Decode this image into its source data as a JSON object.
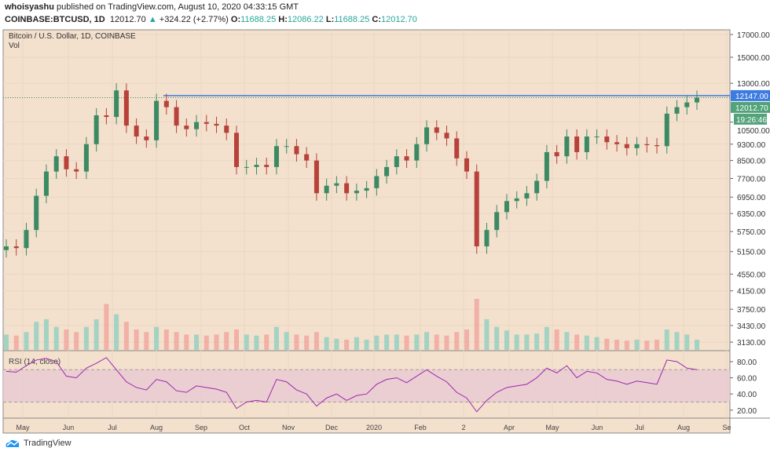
{
  "header": {
    "author": "whoisyashu",
    "published": "published on TradingView.com, August 10, 2020 04:33:15 GMT",
    "symbol": "COINBASE:BTCUSD, 1D",
    "last": "12012.70",
    "change": "+324.22 (+2.77%)",
    "o_label": "O:",
    "o": "11688.25",
    "h_label": "H:",
    "h": "12086.22",
    "l_label": "L:",
    "l": "11688.25",
    "c_label": "C:",
    "c": "12012.70"
  },
  "footer": {
    "brand": "TradingView"
  },
  "colors": {
    "up": "#3b8a63",
    "down": "#b8413a",
    "bg": "#f3e0cd",
    "rsi": "#9c27b0",
    "line": "#3d7be0"
  },
  "chart_data": {
    "type": "candlestick",
    "title": "Bitcoin / U.S. Dollar, 1D, COINBASE",
    "volume_label": "Vol",
    "rsi_label": "RSI (14, close)",
    "price_ticks": [
      "17000.00",
      "15000.00",
      "13000.00",
      "10500.00",
      "9300.00",
      "8500.00",
      "7700.00",
      "6950.00",
      "6350.00",
      "5750.00",
      "5150.00",
      "4550.00",
      "4150.00",
      "3750.00",
      "3430.00",
      "3130.00"
    ],
    "rsi_ticks": [
      "80.00",
      "60.00",
      "40.00",
      "20.00"
    ],
    "x_ticks": [
      "May",
      "Jun",
      "Jul",
      "Aug",
      "Sep",
      "Oct",
      "Nov",
      "Dec",
      "2020",
      "Feb",
      "2",
      "Apr",
      "May",
      "Jun",
      "Jul",
      "Aug",
      "Se"
    ],
    "price_scale": "log",
    "ylim": [
      3000,
      17500
    ],
    "resistance_line": {
      "value": 12147,
      "label": "12147.00"
    },
    "last_price": {
      "value": 12012.7,
      "label": "12012.70",
      "countdown": "19:26:46"
    },
    "closes": [
      5300,
      5250,
      5800,
      7000,
      8000,
      8700,
      8100,
      8000,
      9300,
      10900,
      10800,
      12500,
      10300,
      9700,
      9500,
      11800,
      11400,
      10300,
      10100,
      10500,
      10400,
      10300,
      9900,
      8200,
      8200,
      8300,
      8200,
      9200,
      9200,
      8800,
      8500,
      7100,
      7400,
      7500,
      7100,
      7200,
      7300,
      7800,
      8200,
      8700,
      8500,
      9300,
      10200,
      9900,
      9600,
      8600,
      8000,
      5300,
      5800,
      6400,
      6800,
      6900,
      7100,
      7600,
      8900,
      8700,
      9700,
      8900,
      9700,
      9700,
      9400,
      9300,
      9100,
      9300,
      9250,
      9200,
      11000,
      11400,
      11700,
      12012
    ],
    "volume": [
      30,
      28,
      35,
      55,
      60,
      45,
      40,
      35,
      45,
      60,
      90,
      70,
      55,
      40,
      35,
      45,
      40,
      35,
      30,
      30,
      28,
      30,
      35,
      40,
      30,
      28,
      30,
      45,
      35,
      30,
      28,
      35,
      25,
      22,
      20,
      25,
      20,
      28,
      30,
      30,
      28,
      30,
      35,
      30,
      28,
      35,
      40,
      100,
      60,
      45,
      38,
      30,
      30,
      32,
      45,
      40,
      35,
      30,
      28,
      25,
      22,
      20,
      18,
      20,
      18,
      20,
      40,
      35,
      30,
      20
    ],
    "rsi": [
      68,
      67,
      75,
      82,
      84,
      80,
      62,
      60,
      72,
      78,
      85,
      70,
      55,
      48,
      45,
      58,
      55,
      44,
      42,
      50,
      48,
      46,
      42,
      22,
      30,
      32,
      30,
      58,
      55,
      45,
      40,
      25,
      35,
      40,
      32,
      38,
      40,
      52,
      58,
      60,
      54,
      62,
      70,
      62,
      55,
      42,
      35,
      18,
      32,
      42,
      48,
      50,
      52,
      60,
      72,
      66,
      75,
      60,
      68,
      66,
      58,
      56,
      52,
      56,
      54,
      52,
      82,
      80,
      72,
      70
    ]
  }
}
